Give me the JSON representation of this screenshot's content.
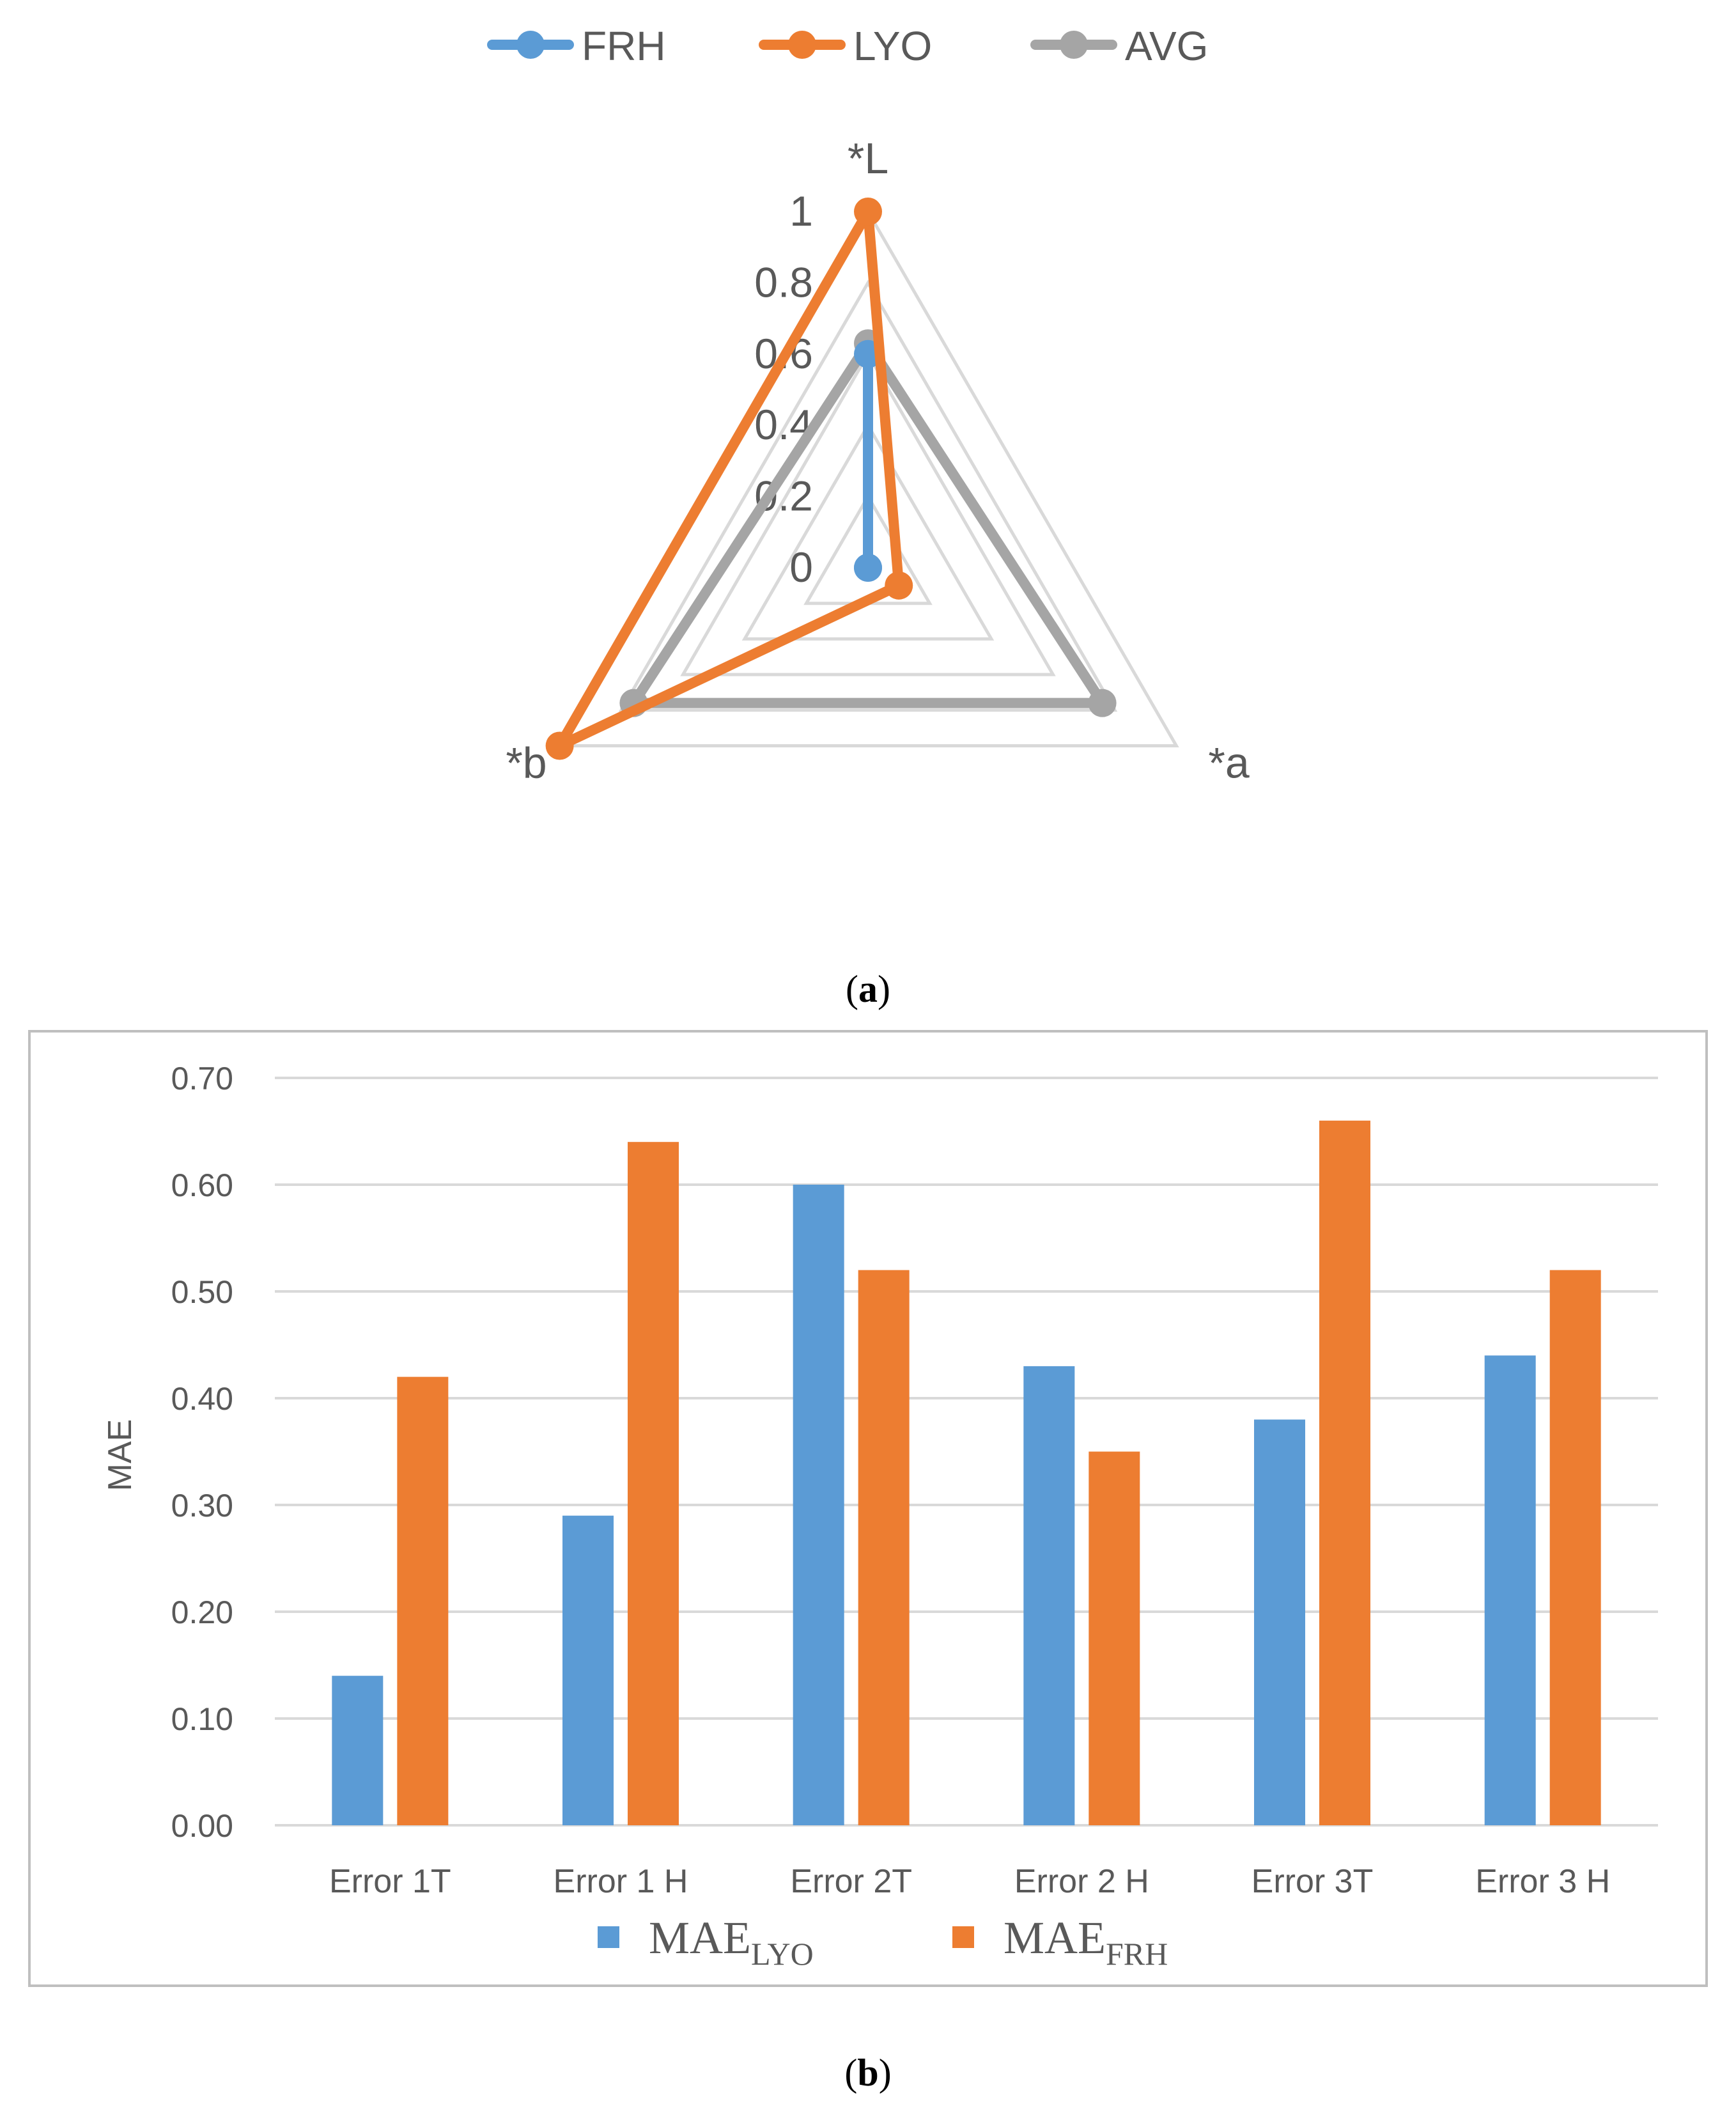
{
  "colors": {
    "blue": "#5B9BD5",
    "orange": "#ED7D31",
    "gray": "#A5A5A5",
    "grid": "#D9D9D9",
    "text": "#595959",
    "frame": "#BFBFBF"
  },
  "panel_labels": {
    "a": {
      "open": "(",
      "letter": "a",
      "close": ")"
    },
    "b": {
      "open": "(",
      "letter": "b",
      "close": ")"
    }
  },
  "chart_data": [
    {
      "type": "radar",
      "axes": [
        "*L",
        "*a",
        "*b"
      ],
      "scale_ticks": [
        "0",
        "0.2",
        "0.4",
        "0.6",
        "0.8",
        "1"
      ],
      "range": [
        0,
        1
      ],
      "legend_position": "top",
      "series": [
        {
          "name": "FRH",
          "color": "#5B9BD5",
          "values": [
            0.6,
            0.0,
            0.0
          ]
        },
        {
          "name": "LYO",
          "color": "#ED7D31",
          "values": [
            1.0,
            0.1,
            1.0
          ]
        },
        {
          "name": "AVG",
          "color": "#A5A5A5",
          "values": [
            0.63,
            0.76,
            0.76
          ]
        }
      ]
    },
    {
      "type": "bar",
      "categories": [
        "Error 1T",
        "Error 1 H",
        "Error 2T",
        "Error 2 H",
        "Error 3T",
        "Error 3 H"
      ],
      "ylabel": "MAE",
      "ylim": [
        0,
        0.7
      ],
      "yticks": [
        "0.00",
        "0.10",
        "0.20",
        "0.30",
        "0.40",
        "0.50",
        "0.60",
        "0.70"
      ],
      "grid": true,
      "legend_position": "bottom",
      "series": [
        {
          "name_main": "MAE",
          "name_sub": "LYO",
          "color": "#5B9BD5",
          "values": [
            0.14,
            0.29,
            0.6,
            0.43,
            0.38,
            0.44
          ]
        },
        {
          "name_main": "MAE",
          "name_sub": "FRH",
          "color": "#ED7D31",
          "values": [
            0.42,
            0.64,
            0.52,
            0.35,
            0.66,
            0.52
          ]
        }
      ]
    }
  ]
}
